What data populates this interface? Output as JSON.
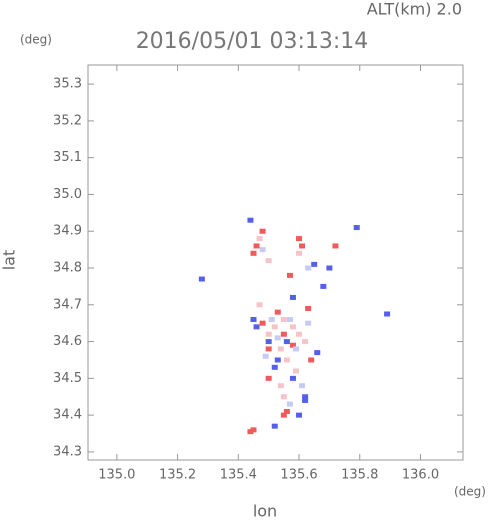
{
  "chart_data": {
    "type": "scatter",
    "title": "2016/05/01 03:13:14",
    "annotation": "ALT(km) 2.0",
    "xlabel": "lon",
    "ylabel": "lat",
    "xunit": "(deg)",
    "yunit": "(deg)",
    "xlim": [
      134.905,
      136.14
    ],
    "ylim": [
      34.278,
      35.352
    ],
    "xticks": [
      {
        "value": 135,
        "label": "135.0"
      },
      135.2,
      135.4,
      135.6,
      135.8,
      {
        "value": 136,
        "label": "136.0"
      }
    ],
    "yticks": [
      34.3,
      34.4,
      34.5,
      34.6,
      34.7,
      34.8,
      34.9,
      {
        "value": 35,
        "label": "35.0"
      },
      35.1,
      35.2,
      35.3
    ],
    "series": [
      {
        "color": "#f05a5a",
        "x": [
          135.55,
          135.56,
          135.44,
          135.45,
          135.45,
          135.46,
          135.6,
          135.58,
          135.48,
          135.53,
          135.63,
          135.55,
          135.5,
          135.61,
          135.72,
          135.48,
          135.57,
          135.5,
          135.64
        ],
        "values": [
          34.4,
          34.41,
          34.355,
          34.36,
          34.84,
          34.86,
          34.88,
          34.59,
          34.65,
          34.68,
          34.69,
          34.62,
          34.5,
          34.86,
          34.86,
          34.9,
          34.78,
          34.58,
          34.55
        ]
      },
      {
        "color": "#5560e8",
        "x": [
          135.56,
          135.5,
          135.46,
          135.62,
          135.62,
          135.6,
          135.52,
          135.28,
          135.89,
          135.79,
          135.7,
          135.65,
          135.44,
          135.52,
          135.58,
          135.66,
          135.45,
          135.53,
          135.58,
          135.68
        ],
        "values": [
          34.6,
          34.6,
          34.64,
          34.45,
          34.44,
          34.4,
          34.37,
          34.77,
          34.675,
          34.91,
          34.8,
          34.81,
          34.93,
          34.53,
          34.72,
          34.57,
          34.66,
          34.55,
          34.5,
          34.75
        ]
      },
      {
        "color": "#f4c4c8",
        "x": [
          135.52,
          135.55,
          135.58,
          135.6,
          135.54,
          135.56,
          135.5,
          135.47,
          135.62,
          135.59,
          135.54,
          135.55,
          135.47,
          135.6,
          135.5
        ],
        "values": [
          34.64,
          34.66,
          34.64,
          34.62,
          34.58,
          34.55,
          34.62,
          34.7,
          34.6,
          34.52,
          34.48,
          34.45,
          34.88,
          34.84,
          34.82
        ]
      },
      {
        "color": "#c6cbf4",
        "x": [
          135.57,
          135.51,
          135.59,
          135.53,
          135.63,
          135.61,
          135.57,
          135.48,
          135.63,
          135.49
        ],
        "values": [
          34.66,
          34.66,
          34.58,
          34.61,
          34.65,
          34.48,
          34.43,
          34.85,
          34.8,
          34.56
        ]
      }
    ]
  }
}
